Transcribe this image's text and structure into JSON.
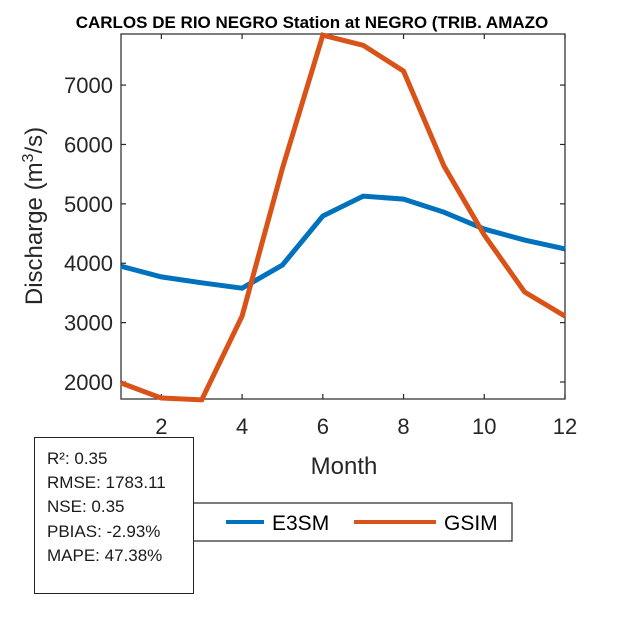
{
  "chart_data": {
    "type": "line",
    "title": "CARLOS DE RIO NEGRO  Station at  NEGRO (TRIB. AMAZO",
    "xlabel": "Month",
    "ylabel": "Discharge (m3/s)",
    "ylabel_parts": {
      "prefix": "Discharge (m",
      "superscript": "3",
      "suffix": "/s)"
    },
    "x": [
      1,
      2,
      3,
      4,
      5,
      6,
      7,
      8,
      9,
      10,
      11,
      12
    ],
    "xlim": [
      1,
      12
    ],
    "ylim": [
      1714,
      7860
    ],
    "xticks": [
      2,
      4,
      6,
      8,
      10,
      12
    ],
    "yticks": [
      2000,
      3000,
      4000,
      5000,
      6000,
      7000
    ],
    "grid": false,
    "legend_position": "bottom-center",
    "series": [
      {
        "name": "E3SM",
        "color": "#0072BD",
        "values": [
          3950,
          3770,
          3670,
          3580,
          3970,
          4795,
          5130,
          5080,
          4860,
          4575,
          4390,
          4240
        ]
      },
      {
        "name": "GSIM",
        "color": "#D95319",
        "values": [
          1985,
          1730,
          1700,
          3110,
          5600,
          7840,
          7670,
          7235,
          5640,
          4475,
          3515,
          3110
        ]
      }
    ]
  },
  "stats": [
    "R²: 0.35",
    "RMSE: 1783.11",
    "NSE: 0.35",
    "PBIAS: -2.93%",
    "MAPE: 47.38%"
  ]
}
